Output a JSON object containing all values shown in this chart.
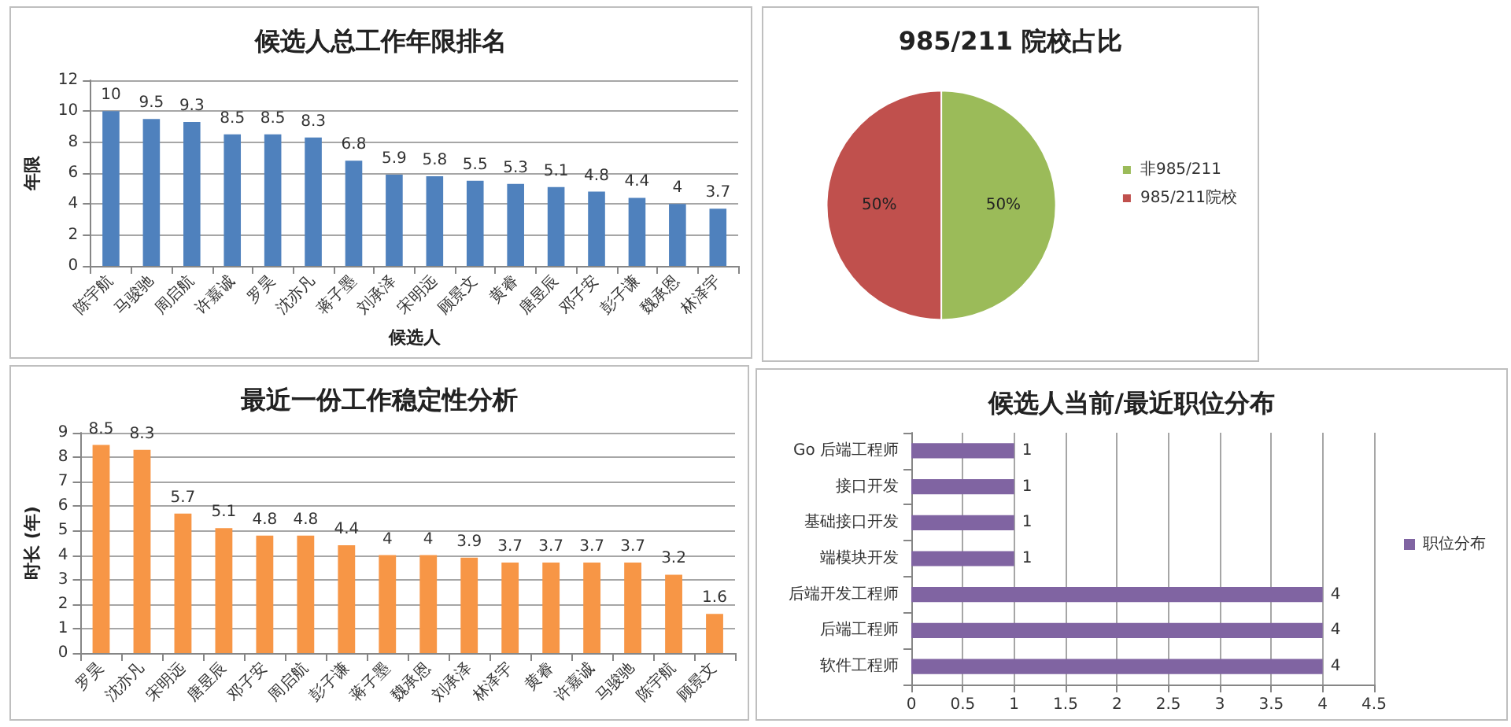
{
  "chart_data": [
    {
      "type": "bar",
      "title": "候选人总工作年限排名",
      "xlabel": "候选人",
      "ylabel": "年限",
      "categories": [
        "陈宇航",
        "马骏驰",
        "周启航",
        "许嘉诚",
        "罗昊",
        "沈亦凡",
        "蒋子墨",
        "刘承泽",
        "宋明远",
        "顾景文",
        "黄睿",
        "唐昱辰",
        "邓子安",
        "彭子谦",
        "魏承恩",
        "林泽宇"
      ],
      "values": [
        10,
        9.5,
        9.3,
        8.5,
        8.5,
        8.3,
        6.8,
        5.9,
        5.8,
        5.5,
        5.3,
        5.1,
        4.8,
        4.4,
        4,
        3.7
      ],
      "color": "#4f81bd",
      "ylim": [
        0,
        12
      ],
      "yticks": [
        0,
        2,
        4,
        6,
        8,
        10,
        12
      ],
      "grid": "y",
      "data_labels": true
    },
    {
      "type": "pie",
      "title": "985/211 院校占比",
      "categories": [
        "非985/211",
        "985/211院校"
      ],
      "values": [
        50,
        50
      ],
      "colors": [
        "#9bbb59",
        "#c0504d"
      ],
      "value_labels": [
        "50%",
        "50%"
      ],
      "legend": "right"
    },
    {
      "type": "bar",
      "title": "最近一份工作稳定性分析",
      "ylabel": "时长 (年)",
      "categories": [
        "罗昊",
        "沈亦凡",
        "宋明远",
        "唐昱辰",
        "邓子安",
        "周启航",
        "彭子谦",
        "蒋子墨",
        "魏承恩",
        "刘承泽",
        "林泽宇",
        "黄睿",
        "许嘉诚",
        "马骏驰",
        "陈宇航",
        "顾景文"
      ],
      "values": [
        8.5,
        8.3,
        5.7,
        5.1,
        4.8,
        4.8,
        4.4,
        4,
        4,
        3.9,
        3.7,
        3.7,
        3.7,
        3.7,
        3.2,
        1.6
      ],
      "color": "#f79646",
      "ylim": [
        0,
        9
      ],
      "yticks": [
        0,
        1,
        2,
        3,
        4,
        5,
        6,
        7,
        8,
        9
      ],
      "grid": "y",
      "data_labels": true
    },
    {
      "type": "bar",
      "orientation": "horizontal",
      "title": "候选人当前/最近职位分布",
      "categories": [
        "Go 后端工程师",
        "接口开发",
        "基础接口开发",
        "端模块开发",
        "后端开发工程师",
        "后端工程师",
        "软件工程师"
      ],
      "series": [
        {
          "name": "职位分布",
          "color": "#8064a2",
          "values": [
            1,
            1,
            1,
            1,
            4,
            4,
            4
          ]
        }
      ],
      "xlim": [
        0,
        4.5
      ],
      "xticks": [
        0,
        0.5,
        1,
        1.5,
        2,
        2.5,
        3,
        3.5,
        4,
        4.5
      ],
      "grid": "x",
      "data_labels": true,
      "legend": "right"
    }
  ]
}
